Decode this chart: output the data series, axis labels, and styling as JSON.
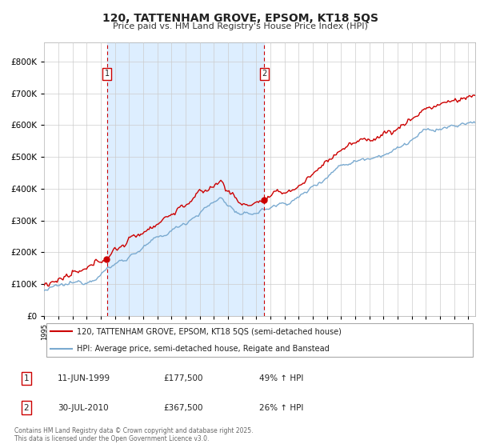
{
  "title": "120, TATTENHAM GROVE, EPSOM, KT18 5QS",
  "subtitle": "Price paid vs. HM Land Registry's House Price Index (HPI)",
  "legend_line1": "120, TATTENHAM GROVE, EPSOM, KT18 5QS (semi-detached house)",
  "legend_line2": "HPI: Average price, semi-detached house, Reigate and Banstead",
  "annotation1_label": "1",
  "annotation1_date": "11-JUN-1999",
  "annotation1_price": "£177,500",
  "annotation1_pct": "49% ↑ HPI",
  "annotation2_label": "2",
  "annotation2_date": "30-JUL-2010",
  "annotation2_price": "£367,500",
  "annotation2_pct": "26% ↑ HPI",
  "footer": "Contains HM Land Registry data © Crown copyright and database right 2025.\nThis data is licensed under the Open Government Licence v3.0.",
  "sale1_year": 1999.44,
  "sale1_price": 177500,
  "sale2_year": 2010.58,
  "sale2_price": 367500,
  "red_color": "#cc0000",
  "blue_color": "#7aaad0",
  "shade_color": "#ddeeff",
  "dashed_red": "#cc0000",
  "background_color": "#ffffff",
  "grid_color": "#cccccc",
  "ylim_min": 0,
  "ylim_max": 860000,
  "xmin": 1995.0,
  "xmax": 2025.5,
  "yticks": [
    0,
    100000,
    200000,
    300000,
    400000,
    500000,
    600000,
    700000,
    800000
  ]
}
